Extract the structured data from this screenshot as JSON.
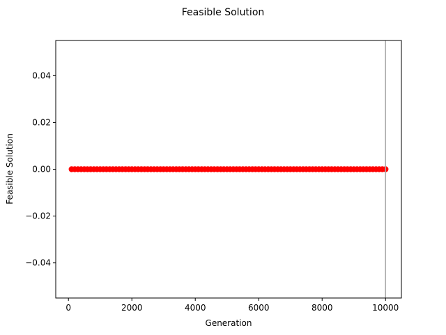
{
  "chart_data": {
    "type": "scatter",
    "title": "Feasible Solution",
    "xlabel": "Generation",
    "ylabel": "Feasible Solution",
    "xlim": [
      -400,
      10500
    ],
    "ylim": [
      -0.055,
      0.055
    ],
    "xticks": [
      0,
      2000,
      4000,
      6000,
      8000,
      10000
    ],
    "xtick_labels": [
      "0",
      "2000",
      "4000",
      "6000",
      "8000",
      "10000"
    ],
    "yticks": [
      -0.04,
      -0.02,
      0.0,
      0.02,
      0.04
    ],
    "ytick_labels": [
      "−0.04",
      "−0.02",
      "0.00",
      "0.02",
      "0.04"
    ],
    "grid": false,
    "reference_line": {
      "axis": "x",
      "value": 10000,
      "color": "#aaaaaa"
    },
    "series": [
      {
        "color": "#ff0000",
        "marker": "circle",
        "x_start": 100,
        "x_end": 10000,
        "x_step": 100,
        "y_constant": 0.0
      }
    ]
  }
}
